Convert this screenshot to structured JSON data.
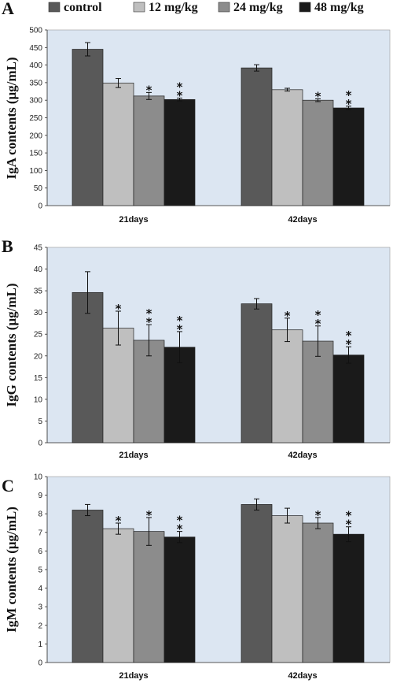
{
  "legend": [
    {
      "label": "control",
      "color": "#595959"
    },
    {
      "label": "12 mg/kg",
      "color": "#bfbfbf"
    },
    {
      "label": "24 mg/kg",
      "color": "#8c8c8c"
    },
    {
      "label": "48 mg/kg",
      "color": "#1a1a1a"
    }
  ],
  "chart_data": [
    {
      "panel": "A",
      "type": "bar",
      "ylabel": "IgA contents (μg/mL)",
      "categories": [
        "21days",
        "42days"
      ],
      "ylim": [
        0,
        500
      ],
      "yticks": [
        0,
        50,
        100,
        150,
        200,
        250,
        300,
        350,
        400,
        450,
        500
      ],
      "background": "#dce6f2",
      "series": [
        {
          "name": "control",
          "values": [
            445,
            392
          ],
          "errors": [
            19,
            9
          ],
          "stars": [
            "",
            ""
          ]
        },
        {
          "name": "12 mg/kg",
          "values": [
            349,
            330
          ],
          "errors": [
            13,
            4
          ],
          "stars": [
            "",
            ""
          ]
        },
        {
          "name": "24 mg/kg",
          "values": [
            312,
            300
          ],
          "errors": [
            10,
            4
          ],
          "stars": [
            "*",
            "*"
          ]
        },
        {
          "name": "48 mg/kg",
          "values": [
            302,
            278
          ],
          "errors": [
            4,
            5
          ],
          "stars": [
            "**",
            "**"
          ]
        }
      ]
    },
    {
      "panel": "B",
      "type": "bar",
      "ylabel": "IgG contents (μg/mL)",
      "categories": [
        "21days",
        "42days"
      ],
      "ylim": [
        0,
        45
      ],
      "yticks": [
        0,
        5,
        10,
        15,
        20,
        25,
        30,
        35,
        40,
        45
      ],
      "background": "#dce6f2",
      "series": [
        {
          "name": "control",
          "values": [
            34.6,
            32.0
          ],
          "errors": [
            4.8,
            1.2
          ],
          "stars": [
            "",
            ""
          ]
        },
        {
          "name": "12 mg/kg",
          "values": [
            26.4,
            26.0
          ],
          "errors": [
            3.9,
            2.7
          ],
          "stars": [
            "*",
            "*"
          ]
        },
        {
          "name": "24 mg/kg",
          "values": [
            23.6,
            23.4
          ],
          "errors": [
            3.6,
            3.5
          ],
          "stars": [
            "**",
            "**"
          ]
        },
        {
          "name": "48 mg/kg",
          "values": [
            22.0,
            20.2
          ],
          "errors": [
            3.6,
            1.9
          ],
          "stars": [
            "**",
            "**"
          ]
        }
      ]
    },
    {
      "panel": "C",
      "type": "bar",
      "ylabel": "IgM contents (μg/mL)",
      "categories": [
        "21days",
        "42days"
      ],
      "ylim": [
        0,
        10
      ],
      "yticks": [
        0,
        1,
        2,
        3,
        4,
        5,
        6,
        7,
        8,
        9,
        10
      ],
      "background": "#dce6f2",
      "series": [
        {
          "name": "control",
          "values": [
            8.2,
            8.5
          ],
          "errors": [
            0.3,
            0.3
          ],
          "stars": [
            "",
            ""
          ]
        },
        {
          "name": "12 mg/kg",
          "values": [
            7.2,
            7.9
          ],
          "errors": [
            0.3,
            0.4
          ],
          "stars": [
            "*",
            ""
          ]
        },
        {
          "name": "24 mg/kg",
          "values": [
            7.05,
            7.5
          ],
          "errors": [
            0.75,
            0.3
          ],
          "stars": [
            "*",
            "*"
          ]
        },
        {
          "name": "48 mg/kg",
          "values": [
            6.75,
            6.9
          ],
          "errors": [
            0.3,
            0.4
          ],
          "stars": [
            "**",
            "**"
          ]
        }
      ]
    }
  ]
}
